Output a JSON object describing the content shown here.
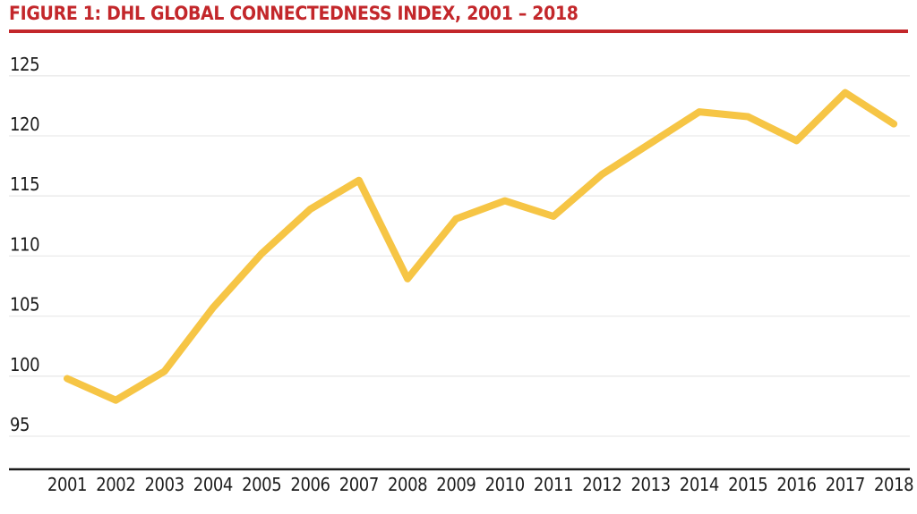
{
  "page": {
    "title": "FIGURE 1: DHL GLOBAL CONNECTEDNESS INDEX, 2001 – 2018"
  },
  "colors": {
    "title_red": "#c3272b",
    "rule_red": "#c3272b",
    "line_yellow": "#f6c545",
    "gridline_gray": "#eaeaea",
    "axis_black": "#1b1b1b",
    "tick_text": "#1c1c1c",
    "background": "#ffffff"
  },
  "chart_data": {
    "type": "line",
    "title": "FIGURE 1: DHL GLOBAL CONNECTEDNESS INDEX, 2001 – 2018",
    "x": [
      2001,
      2002,
      2003,
      2004,
      2005,
      2006,
      2007,
      2008,
      2009,
      2010,
      2011,
      2012,
      2013,
      2014,
      2015,
      2016,
      2017,
      2018
    ],
    "series": [
      {
        "name": "DHL Global Connectedness Index",
        "values": [
          99.8,
          98.0,
          100.4,
          105.7,
          110.2,
          113.9,
          116.3,
          108.1,
          113.1,
          114.6,
          113.3,
          116.8,
          119.4,
          122.0,
          121.6,
          119.6,
          123.6,
          121.0
        ]
      }
    ],
    "xlabel": "",
    "ylabel": "",
    "y_ticks": [
      95,
      100,
      105,
      110,
      115,
      120,
      125
    ],
    "ylim": [
      92.2,
      126.5
    ],
    "grid": true,
    "legend": "none",
    "line_width": 8
  }
}
